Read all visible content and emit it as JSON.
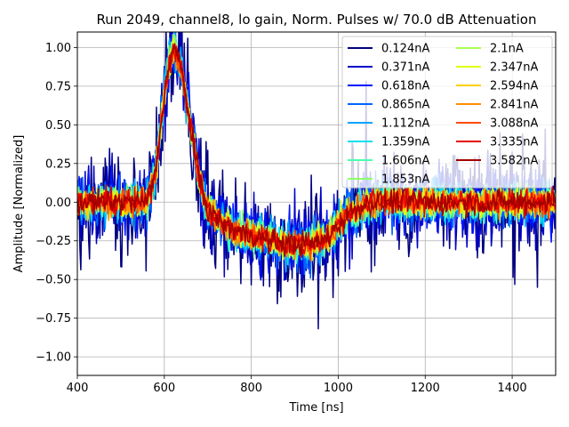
{
  "chart_data": {
    "type": "line",
    "title": "Run 2049, channel8, lo gain, Norm. Pulses w/ 70.0 dB Attenuation",
    "xlabel": "Time [ns]",
    "ylabel": "Amplitude [Normalized]",
    "xlim": [
      400,
      1500
    ],
    "ylim": [
      -1.12,
      1.1
    ],
    "xticks": [
      400,
      600,
      800,
      1000,
      1200,
      1400
    ],
    "xtick_labels": [
      "400",
      "600",
      "800",
      "1000",
      "1200",
      "1400"
    ],
    "yticks": [
      -1.0,
      -0.75,
      -0.5,
      -0.25,
      0.0,
      0.25,
      0.5,
      0.75,
      1.0
    ],
    "ytick_labels": [
      "−1.00",
      "−0.75",
      "−0.50",
      "−0.25",
      "0.00",
      "0.25",
      "0.50",
      "0.75",
      "1.00"
    ],
    "grid": true,
    "legend_position": "top-right",
    "legend_columns": 2,
    "pulse_shape": {
      "x": [
        400,
        560,
        580,
        600,
        615,
        622,
        640,
        660,
        680,
        700,
        740,
        780,
        820,
        860,
        900,
        940,
        970,
        1000,
        1020,
        1050,
        1080,
        1120,
        1200,
        1300,
        1400,
        1500
      ],
      "y": [
        0.0,
        0.0,
        0.2,
        0.7,
        0.95,
        1.0,
        0.85,
        0.5,
        0.15,
        -0.05,
        -0.15,
        -0.2,
        -0.23,
        -0.26,
        -0.27,
        -0.27,
        -0.24,
        -0.15,
        -0.08,
        -0.03,
        0.0,
        0.01,
        0.0,
        0.0,
        0.0,
        0.0
      ]
    },
    "series": [
      {
        "name": "0.124nA",
        "color": "#00007f",
        "noise": 0.16
      },
      {
        "name": "0.371nA",
        "color": "#0000c8",
        "noise": 0.12
      },
      {
        "name": "0.618nA",
        "color": "#0014ff",
        "noise": 0.09
      },
      {
        "name": "0.865nA",
        "color": "#0064ff",
        "noise": 0.075
      },
      {
        "name": "1.112nA",
        "color": "#00a4ff",
        "noise": 0.065
      },
      {
        "name": "1.359nA",
        "color": "#0ae0f0",
        "noise": 0.058
      },
      {
        "name": "1.606nA",
        "color": "#4affae",
        "noise": 0.052
      },
      {
        "name": "1.853nA",
        "color": "#8cff6c",
        "noise": 0.048
      },
      {
        "name": "2.1nA",
        "color": "#aaff4d",
        "noise": 0.045
      },
      {
        "name": "2.347nA",
        "color": "#e0ff16",
        "noise": 0.043
      },
      {
        "name": "2.594nA",
        "color": "#ffd000",
        "noise": 0.041
      },
      {
        "name": "2.841nA",
        "color": "#ff8d00",
        "noise": 0.039
      },
      {
        "name": "3.088nA",
        "color": "#ff4a00",
        "noise": 0.038
      },
      {
        "name": "3.335nA",
        "color": "#e40000",
        "noise": 0.037
      },
      {
        "name": "3.582nA",
        "color": "#a30000",
        "noise": 0.036
      }
    ]
  }
}
